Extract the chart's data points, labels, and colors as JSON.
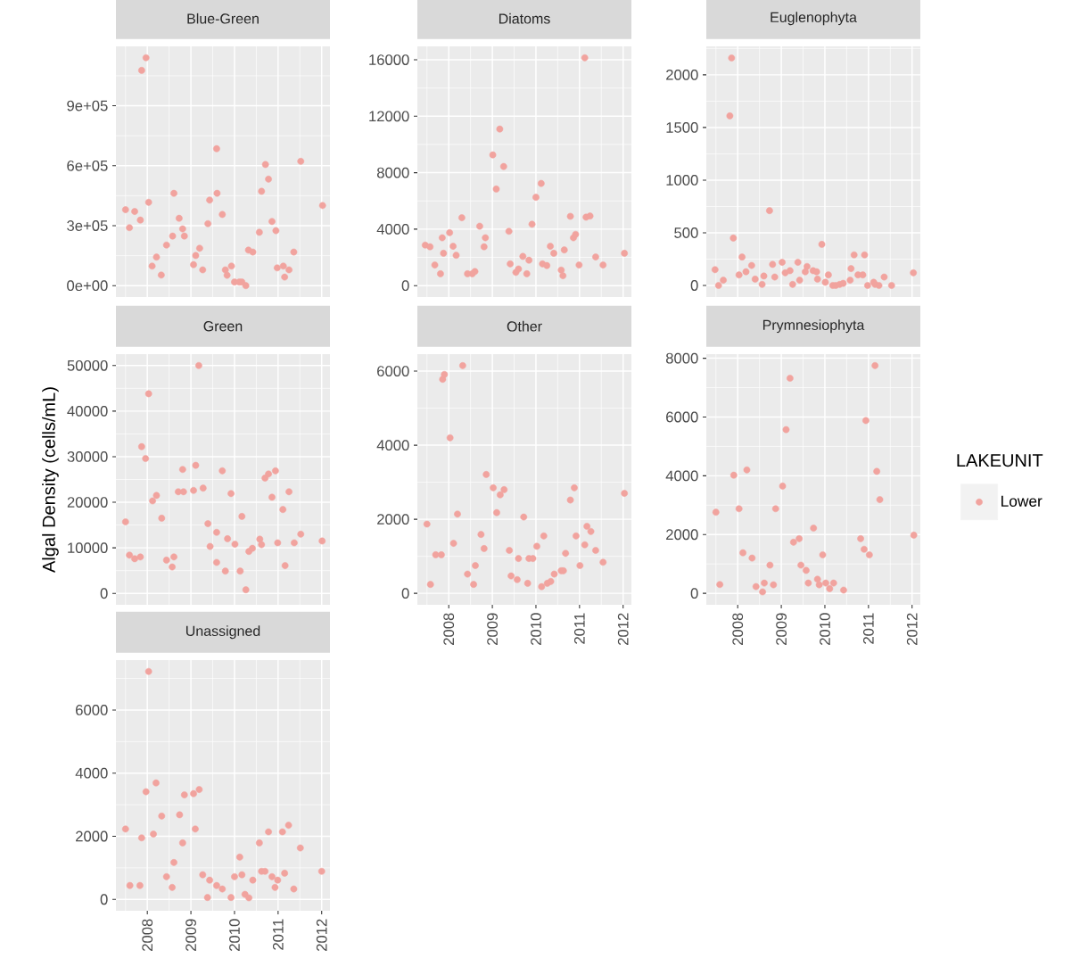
{
  "chart_data": [
    {
      "type": "scatter",
      "title": "Blue-Green",
      "marker": "circle",
      "grid": true,
      "tick_labels": "y",
      "xlim": [
        2007.28,
        2012.19
      ],
      "xticks": [
        2008,
        2009,
        2010,
        2011,
        2012
      ],
      "ylim": [
        -57000,
        1197000
      ],
      "yticks": [
        {
          "value": 0,
          "label": "0e+00"
        },
        {
          "value": 300000,
          "label": "3e+05"
        },
        {
          "value": 600000,
          "label": "6e+05"
        },
        {
          "value": 900000,
          "label": "9e+05"
        }
      ],
      "x": [
        2007.5,
        2007.59,
        2007.71,
        2007.84,
        2007.87,
        2007.97,
        2008.03,
        2008.11,
        2008.21,
        2008.32,
        2008.44,
        2008.58,
        2008.61,
        2008.73,
        2008.81,
        2008.85,
        2009.06,
        2009.11,
        2009.2,
        2009.27,
        2009.39,
        2009.43,
        2009.59,
        2009.6,
        2009.72,
        2009.79,
        2009.83,
        2009.93,
        2010.0,
        2010.11,
        2010.17,
        2010.26,
        2010.32,
        2010.42,
        2010.57,
        2010.62,
        2010.71,
        2010.78,
        2010.86,
        2010.95,
        2010.98,
        2011.12,
        2011.15,
        2011.25,
        2011.36,
        2011.52,
        2012.02
      ],
      "series": [
        {
          "color": "#f1a39e",
          "values": [
            380000,
            290000,
            371000,
            328000,
            1077000,
            1140000,
            417000,
            98000,
            143000,
            53000,
            203000,
            248000,
            462000,
            337000,
            284000,
            248000,
            105000,
            151000,
            187000,
            79000,
            310000,
            428000,
            685000,
            462000,
            356000,
            79000,
            52000,
            98000,
            18000,
            18000,
            18000,
            0,
            178000,
            168000,
            267000,
            472000,
            606000,
            533000,
            321000,
            275000,
            89000,
            98000,
            43000,
            79000,
            168000,
            622000,
            401000
          ]
        }
      ]
    },
    {
      "type": "scatter",
      "title": "Diatoms",
      "marker": "circle",
      "grid": true,
      "tick_labels": "y",
      "xlim": [
        2007.28,
        2012.19
      ],
      "xticks": [
        2008,
        2009,
        2010,
        2011,
        2012
      ],
      "ylim": [
        -810,
        16950
      ],
      "yticks": [
        0,
        4000,
        8000,
        12000,
        16000
      ],
      "x": [
        2007.46,
        2007.57,
        2007.68,
        2007.81,
        2007.85,
        2007.88,
        2008.02,
        2008.1,
        2008.17,
        2008.3,
        2008.43,
        2008.54,
        2008.6,
        2008.71,
        2008.81,
        2008.84,
        2009.01,
        2009.09,
        2009.17,
        2009.26,
        2009.38,
        2009.41,
        2009.54,
        2009.6,
        2009.7,
        2009.79,
        2009.84,
        2009.91,
        2010.0,
        2010.12,
        2010.15,
        2010.25,
        2010.33,
        2010.41,
        2010.58,
        2010.62,
        2010.65,
        2010.79,
        2010.86,
        2010.91,
        2010.99,
        2011.12,
        2011.15,
        2011.24,
        2011.37,
        2011.54,
        2012.03
      ],
      "series": [
        {
          "color": "#f1a39e",
          "values": [
            2870,
            2750,
            1460,
            840,
            3390,
            2290,
            3750,
            2790,
            2150,
            4810,
            840,
            840,
            1000,
            4210,
            2750,
            3390,
            9260,
            6840,
            11090,
            8440,
            3850,
            1540,
            940,
            1180,
            2070,
            840,
            1800,
            4350,
            6260,
            7240,
            1540,
            1420,
            2790,
            2290,
            1100,
            700,
            2530,
            4910,
            3390,
            3630,
            1460,
            16140,
            4850,
            4930,
            2030,
            1460,
            2290
          ]
        }
      ]
    },
    {
      "type": "scatter",
      "title": "Euglenophyta",
      "marker": "circle",
      "grid": true,
      "tick_labels": "y",
      "xlim": [
        2007.28,
        2012.19
      ],
      "xticks": [
        2008,
        2009,
        2010,
        2011,
        2012
      ],
      "ylim": [
        -110,
        2270
      ],
      "yticks": [
        0,
        500,
        1000,
        1500,
        2000
      ],
      "x": [
        2007.48,
        2007.56,
        2007.67,
        2007.82,
        2007.86,
        2007.9,
        2008.03,
        2008.1,
        2008.19,
        2008.32,
        2008.4,
        2008.56,
        2008.6,
        2008.73,
        2008.8,
        2008.85,
        2009.02,
        2009.09,
        2009.2,
        2009.26,
        2009.38,
        2009.42,
        2009.55,
        2009.59,
        2009.73,
        2009.81,
        2009.83,
        2009.93,
        2010.01,
        2010.08,
        2010.18,
        2010.25,
        2010.34,
        2010.42,
        2010.58,
        2010.6,
        2010.67,
        2010.76,
        2010.87,
        2010.91,
        2010.98,
        2011.12,
        2011.15,
        2011.24,
        2011.36,
        2011.53,
        2012.03
      ],
      "series": [
        {
          "color": "#f1a39e",
          "values": [
            150,
            0,
            50,
            1610,
            2160,
            450,
            100,
            270,
            130,
            190,
            60,
            10,
            90,
            710,
            200,
            80,
            220,
            120,
            140,
            10,
            220,
            50,
            130,
            180,
            140,
            130,
            60,
            390,
            30,
            100,
            0,
            0,
            10,
            20,
            50,
            160,
            290,
            100,
            100,
            290,
            0,
            30,
            10,
            0,
            80,
            0,
            120
          ]
        }
      ]
    },
    {
      "type": "scatter",
      "title": "Green",
      "ylabel": "Algal Density (cells/mL)",
      "marker": "circle",
      "grid": true,
      "tick_labels": "y",
      "xlim": [
        2007.28,
        2012.19
      ],
      "xticks": [
        2008,
        2009,
        2010,
        2011,
        2012
      ],
      "ylim": [
        -2500,
        52500
      ],
      "yticks": [
        0,
        10000,
        20000,
        30000,
        40000,
        50000
      ],
      "x": [
        2007.5,
        2007.59,
        2007.71,
        2007.84,
        2007.96,
        2007.87,
        2008.03,
        2008.12,
        2008.21,
        2008.33,
        2008.44,
        2008.57,
        2008.61,
        2008.71,
        2008.81,
        2008.83,
        2009.06,
        2009.11,
        2009.18,
        2009.28,
        2009.39,
        2009.44,
        2009.59,
        2009.59,
        2009.72,
        2009.79,
        2009.84,
        2009.92,
        2010.01,
        2010.13,
        2010.17,
        2010.26,
        2010.33,
        2010.41,
        2010.58,
        2010.62,
        2010.7,
        2010.78,
        2010.86,
        2010.94,
        2010.99,
        2011.11,
        2011.16,
        2011.25,
        2011.37,
        2011.52,
        2012.01
      ],
      "series": [
        {
          "color": "#f1a39e",
          "values": [
            15700,
            8400,
            7600,
            8000,
            29600,
            32200,
            43800,
            20300,
            21500,
            16500,
            7300,
            5800,
            8000,
            22300,
            27200,
            22300,
            22600,
            28100,
            50000,
            23100,
            15300,
            10300,
            13400,
            6800,
            26900,
            4900,
            12000,
            21900,
            10800,
            4900,
            16900,
            800,
            9200,
            9900,
            11900,
            10700,
            25300,
            26200,
            21100,
            26900,
            11100,
            18400,
            6100,
            22300,
            11100,
            13000,
            11500
          ]
        }
      ]
    },
    {
      "type": "scatter",
      "title": "Other",
      "marker": "circle",
      "grid": true,
      "xlim": [
        2007.28,
        2012.19
      ],
      "xticks": [
        2008,
        2009,
        2010,
        2011,
        2012
      ],
      "ylim": [
        -310,
        6460
      ],
      "yticks": [
        0,
        2000,
        4000,
        6000
      ],
      "x": [
        2007.5,
        2007.58,
        2007.7,
        2007.83,
        2007.86,
        2007.9,
        2008.03,
        2008.11,
        2008.2,
        2008.32,
        2008.43,
        2008.57,
        2008.61,
        2008.74,
        2008.81,
        2008.86,
        2009.02,
        2009.1,
        2009.18,
        2009.27,
        2009.39,
        2009.43,
        2009.57,
        2009.6,
        2009.72,
        2009.81,
        2009.84,
        2009.93,
        2010.02,
        2010.13,
        2010.18,
        2010.26,
        2010.34,
        2010.42,
        2010.58,
        2010.63,
        2010.68,
        2010.79,
        2010.88,
        2010.92,
        2011.01,
        2011.12,
        2011.17,
        2011.26,
        2011.37,
        2011.54,
        2012.03
      ],
      "series": [
        {
          "color": "#f1a39e",
          "values": [
            1870,
            240,
            1040,
            1040,
            5780,
            5910,
            4200,
            1350,
            2140,
            6150,
            520,
            240,
            750,
            1590,
            1210,
            3210,
            2850,
            2180,
            2660,
            2800,
            1160,
            470,
            370,
            940,
            2060,
            270,
            940,
            940,
            1270,
            180,
            1550,
            270,
            320,
            520,
            610,
            610,
            1080,
            2520,
            2850,
            1550,
            750,
            1310,
            1810,
            1670,
            1160,
            840,
            2700
          ]
        }
      ]
    },
    {
      "type": "scatter",
      "title": "Prymnesiophyta",
      "legend_title": "LAKEUNIT",
      "legend": "right",
      "marker": "circle",
      "grid": true,
      "xlim": [
        2007.28,
        2012.19
      ],
      "xticks": [
        2008,
        2009,
        2010,
        2011,
        2012
      ],
      "ylim": [
        -390,
        8140
      ],
      "yticks": [
        0,
        2000,
        4000,
        6000,
        8000
      ],
      "x": [
        2007.5,
        2007.59,
        2007.91,
        2008.03,
        2008.12,
        2008.21,
        2008.33,
        2008.42,
        2008.57,
        2008.61,
        2008.74,
        2008.82,
        2008.87,
        2009.03,
        2009.11,
        2009.2,
        2009.28,
        2009.41,
        2009.45,
        2009.57,
        2009.62,
        2009.74,
        2009.83,
        2009.87,
        2009.95,
        2010.02,
        2010.11,
        2010.2,
        2010.43,
        2010.82,
        2010.9,
        2010.94,
        2011.02,
        2011.15,
        2011.19,
        2011.26,
        2012.04
      ],
      "series": [
        {
          "name": "Lower",
          "color": "#f1a39e",
          "values": [
            2760,
            300,
            4020,
            2880,
            1380,
            4200,
            1200,
            230,
            50,
            350,
            960,
            290,
            2880,
            3650,
            5570,
            7320,
            1740,
            1860,
            960,
            780,
            350,
            2220,
            480,
            290,
            1310,
            350,
            160,
            350,
            110,
            1860,
            1500,
            5880,
            1310,
            7750,
            4150,
            3190,
            1980
          ]
        }
      ]
    },
    {
      "type": "scatter",
      "title": "Unassigned",
      "marker": "circle",
      "grid": true,
      "xlim": [
        2007.28,
        2012.19
      ],
      "xticks": [
        2008,
        2009,
        2010,
        2011,
        2012
      ],
      "ylim": [
        -360,
        7580
      ],
      "yticks": [
        0,
        2000,
        4000,
        6000
      ],
      "x": [
        2007.5,
        2007.6,
        2007.83,
        2007.87,
        2007.97,
        2008.03,
        2008.14,
        2008.2,
        2008.33,
        2008.44,
        2008.57,
        2008.61,
        2008.74,
        2008.81,
        2008.85,
        2009.06,
        2009.1,
        2009.19,
        2009.27,
        2009.38,
        2009.43,
        2009.59,
        2009.72,
        2009.92,
        2010.0,
        2010.12,
        2010.17,
        2010.24,
        2010.33,
        2010.42,
        2010.57,
        2010.62,
        2010.7,
        2010.78,
        2010.86,
        2010.93,
        2010.99,
        2011.1,
        2011.15,
        2011.24,
        2011.36,
        2011.51,
        2012.0
      ],
      "series": [
        {
          "color": "#f1a39e",
          "values": [
            2230,
            440,
            440,
            1950,
            3410,
            7220,
            2070,
            3690,
            2640,
            720,
            380,
            1170,
            2680,
            1790,
            3310,
            3350,
            2230,
            3480,
            780,
            60,
            610,
            440,
            330,
            60,
            720,
            1340,
            780,
            160,
            50,
            610,
            1790,
            890,
            890,
            2140,
            720,
            380,
            610,
            2140,
            830,
            2350,
            330,
            1630,
            890
          ]
        }
      ]
    }
  ]
}
